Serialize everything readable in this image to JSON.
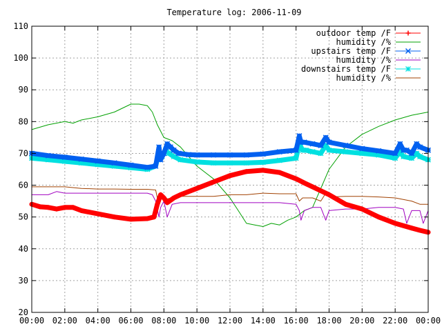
{
  "chart_data": {
    "type": "line",
    "title": "Temperature log: 2006-11-09",
    "xlabel": "",
    "ylabel": "",
    "xlim": [
      0,
      24
    ],
    "ylim": [
      20,
      110
    ],
    "grid": true,
    "legend_position": "top-right",
    "x_ticks": [
      "00:00",
      "02:00",
      "04:00",
      "06:00",
      "08:00",
      "10:00",
      "12:00",
      "14:00",
      "16:00",
      "18:00",
      "20:00",
      "22:00",
      "00:00"
    ],
    "y_ticks": [
      "20",
      "30",
      "40",
      "50",
      "60",
      "70",
      "80",
      "90",
      "100",
      "110"
    ],
    "series": [
      {
        "name": "outdoor temp /F",
        "color": "#ff0000",
        "marker": "plus",
        "x": [
          0,
          0.5,
          1,
          1.5,
          2,
          2.5,
          3,
          4,
          5,
          6,
          7,
          7.4,
          7.6,
          7.8,
          8,
          8.2,
          8.6,
          9,
          10,
          11,
          12,
          13,
          14,
          15,
          16,
          16.5,
          17,
          18,
          19,
          20,
          21,
          22,
          23,
          23.5,
          24
        ],
        "y": [
          54,
          53.2,
          53,
          52.5,
          53,
          53,
          52,
          51,
          50,
          49.3,
          49.5,
          50,
          54,
          57,
          56,
          54.5,
          56,
          57,
          59,
          61,
          63,
          64.3,
          64.7,
          64,
          62,
          60.7,
          59.5,
          57,
          54,
          52.5,
          50,
          48,
          46.5,
          45.8,
          45.2
        ]
      },
      {
        "name": "humidity /%",
        "color": "#00a000",
        "marker": "none",
        "x": [
          0,
          1,
          2,
          2.5,
          3,
          4,
          5,
          6,
          6.5,
          7,
          7.3,
          7.6,
          8,
          8.5,
          9,
          10,
          11,
          12,
          12.5,
          13,
          13.5,
          14,
          14.5,
          15,
          15.5,
          16,
          16.5,
          17,
          18,
          19,
          20,
          21,
          22,
          23,
          24
        ],
        "y": [
          77.5,
          79,
          80,
          79.5,
          80.5,
          81.5,
          83,
          85.5,
          85.5,
          85,
          83,
          79,
          75,
          74,
          72,
          66,
          62,
          56,
          52,
          48,
          47.5,
          47,
          48,
          47.5,
          49,
          50,
          52,
          53,
          65,
          72,
          76,
          78.5,
          80.5,
          82,
          83
        ]
      },
      {
        "name": "upstairs temp /F",
        "color": "#0060f0",
        "marker": "x",
        "x": [
          0,
          1,
          2,
          3,
          4,
          5,
          6,
          7,
          7.5,
          7.7,
          7.8,
          8,
          8.2,
          8.4,
          8.6,
          8.9,
          9.5,
          10,
          11,
          12,
          13,
          14,
          15,
          16,
          16.2,
          16.3,
          16.5,
          17,
          17.5,
          17.8,
          18,
          19,
          20,
          21,
          22,
          22.3,
          22.5,
          22.7,
          23,
          23.3,
          23.5,
          24
        ],
        "y": [
          70,
          69.3,
          68.8,
          68.2,
          67.6,
          67,
          66.3,
          65.6,
          66,
          72,
          68,
          70,
          73,
          72,
          71,
          70,
          69.6,
          69.5,
          69.5,
          69.5,
          69.5,
          69.8,
          70.5,
          71,
          75.5,
          73.5,
          73.5,
          73,
          72.5,
          75,
          73.5,
          72.5,
          71.5,
          70.8,
          70,
          73,
          71,
          71,
          70,
          73,
          72,
          71
        ]
      },
      {
        "name": "humidity /%",
        "color": "#a000c0",
        "marker": "none",
        "x": [
          0,
          1,
          1.5,
          2,
          3,
          4,
          5,
          6,
          7,
          7.3,
          7.5,
          7.7,
          7.8,
          8,
          8.2,
          8.5,
          9,
          10,
          11,
          12,
          13,
          14,
          15,
          16,
          16.2,
          16.3,
          16.5,
          17,
          17.5,
          17.8,
          18,
          19,
          20,
          21,
          22,
          22.5,
          22.7,
          23,
          23.5,
          23.7,
          24
        ],
        "y": [
          57,
          57,
          58,
          57.5,
          57.5,
          57.5,
          57.5,
          57.5,
          57.5,
          57,
          55,
          50,
          53,
          55,
          50,
          54,
          54.5,
          54.5,
          54.5,
          54.5,
          54.5,
          54.5,
          54.5,
          54,
          52,
          49,
          52,
          53,
          53,
          49,
          52,
          52.5,
          52.5,
          53,
          53,
          52.5,
          48,
          52,
          52,
          48,
          52
        ]
      },
      {
        "name": "downstairs temp /F",
        "color": "#00e0e0",
        "marker": "star",
        "x": [
          0,
          1,
          2,
          3,
          4,
          5,
          6,
          7,
          7.5,
          7.7,
          7.9,
          8.1,
          8.3,
          8.6,
          9,
          10,
          11,
          12,
          13,
          14,
          15,
          16,
          16.2,
          16.4,
          16.6,
          17,
          17.5,
          17.8,
          18,
          19,
          20,
          21,
          22,
          22.3,
          22.5,
          23,
          23.3,
          23.5,
          24
        ],
        "y": [
          68.5,
          68,
          67.5,
          67,
          66.5,
          66,
          65.5,
          65,
          66,
          70,
          69,
          71,
          70,
          69,
          68,
          67.3,
          67,
          67,
          67,
          67.2,
          67.8,
          68.5,
          73,
          71,
          71,
          70.5,
          70,
          72.5,
          71,
          70.5,
          70,
          69.5,
          68.5,
          70.5,
          69,
          68.5,
          70,
          69,
          68
        ]
      },
      {
        "name": "humidity /%",
        "color": "#a04000",
        "marker": "none",
        "x": [
          0,
          1,
          2,
          3,
          4,
          5,
          6,
          7,
          7.5,
          7.6,
          8,
          9,
          10,
          11,
          12,
          13,
          14,
          15,
          16,
          16.2,
          16.4,
          17,
          17.5,
          17.8,
          18,
          19,
          20,
          21,
          22,
          23,
          23.5,
          24
        ],
        "y": [
          59.5,
          59.5,
          59.5,
          59,
          58.8,
          58.8,
          58.7,
          58.7,
          58.5,
          56,
          55.5,
          56.5,
          56.5,
          56.5,
          57,
          57,
          57.5,
          57.3,
          57.3,
          55,
          56,
          56,
          55,
          57.5,
          56.3,
          56.5,
          56.5,
          56.3,
          56,
          55,
          54,
          54
        ]
      }
    ]
  }
}
